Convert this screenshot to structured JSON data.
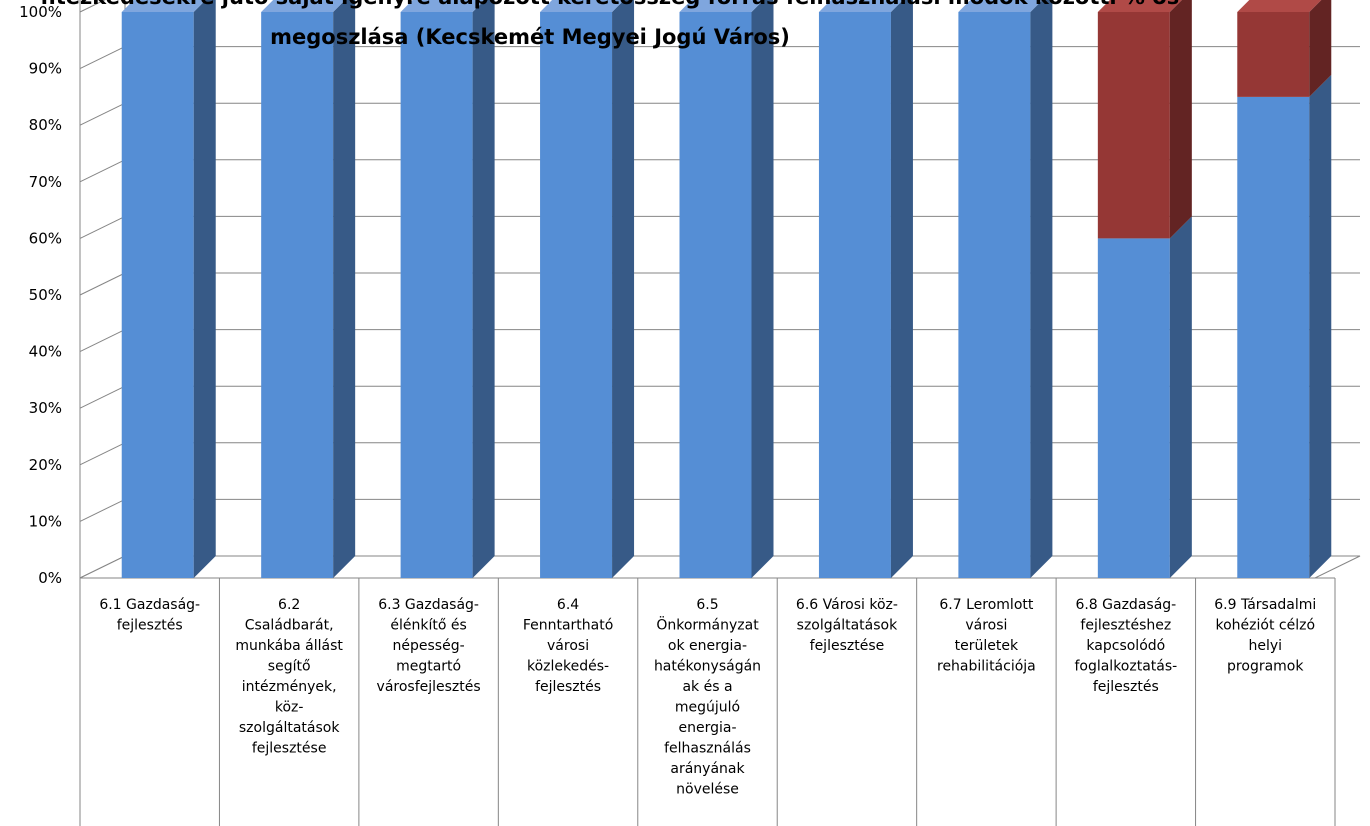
{
  "chart_data": {
    "type": "bar",
    "stacked": true,
    "title": "Az egyes tematikus célokhoz tartozó intézkedésekre jutó saját igényre alapozott keretösszeg forrás felhasználási módok közötti % os megoszlása (Kecskemét Megyei Jogú Város)",
    "title_lines": [
      "ntézkedésekre jutó saját igényre alapozott keretösszeg forrás felhasználási módok közötti % os",
      "megoszlása (Kecskemét Megyei Jogú Város)"
    ],
    "y_ticks": [
      "0%",
      "10%",
      "20%",
      "30%",
      "40%",
      "50%",
      "60%",
      "70%",
      "80%",
      "90%",
      "100%"
    ],
    "ylim": [
      0,
      100
    ],
    "grid": true,
    "categories": [
      [
        "6.1 Gazdaság-",
        "fejlesztés"
      ],
      [
        "6.2",
        "Családbarát,",
        "munkába állást",
        "segítő",
        "intézmények,",
        "köz-",
        "szolgáltatások",
        "fejlesztése"
      ],
      [
        "6.3 Gazdaság-",
        "élénkítő és",
        "népesség-",
        "megtartó",
        "városfejlesztés"
      ],
      [
        "6.4",
        "Fenntartható",
        "városi",
        "közlekedés-",
        "fejlesztés"
      ],
      [
        "6.5",
        "Önkormányzat",
        "ok energia-",
        "hatékonyságán",
        "ak és a",
        "megújuló",
        "energia-",
        "felhasználás",
        "arányának",
        "növelése"
      ],
      [
        "6.6 Városi köz-",
        "szolgáltatások",
        "fejlesztése"
      ],
      [
        "6.7 Leromlott",
        "városi",
        "területek",
        "rehabilitációja"
      ],
      [
        "6.8 Gazdaság-",
        "fejlesztéshez",
        "kapcsolódó",
        "foglalkoztatás-",
        "fejlesztés"
      ],
      [
        "6.9 Társadalmi",
        "kohéziót célzó",
        "helyi",
        "programok"
      ]
    ],
    "series": [
      {
        "values": [
          100,
          100,
          100,
          100,
          100,
          100,
          100,
          60,
          85
        ],
        "color": "#558ED5",
        "side_color": "#375A87",
        "top_color": "#7FA6DE"
      },
      {
        "values": [
          0,
          0,
          0,
          0,
          0,
          0,
          0,
          40,
          15
        ],
        "color": "#953735",
        "side_color": "#632423",
        "top_color": "#B04A47"
      }
    ]
  }
}
